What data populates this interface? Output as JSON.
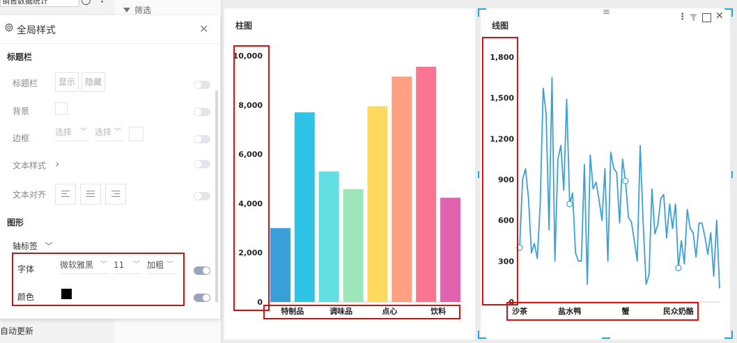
{
  "top": {
    "combo_text": "销售数据统计",
    "more_icon": "⋮",
    "filter_label": "筛选",
    "auto_update": "自动更新"
  },
  "panel": {
    "title": "全局样式",
    "close_icon": "✕",
    "sections": {
      "title_bar": "标题栏",
      "graphics": "图形"
    },
    "title_bar_row": {
      "label": "标题栏",
      "show": "显示",
      "hide": "隐藏"
    },
    "background_row": {
      "label": "背景"
    },
    "border_row": {
      "label": "边框",
      "select1": "选择",
      "select2": "选择"
    },
    "text_style_row": {
      "label": "文本样式",
      "chevron": "›"
    },
    "text_align_row": {
      "label": "文本对齐"
    },
    "axis_label": {
      "label": "轴标签",
      "chevron": "⌄"
    },
    "font_row": {
      "label": "字体",
      "family": "微软雅黑",
      "size": "11",
      "weight": "加粗"
    },
    "color_row": {
      "label": "颜色",
      "value": "#000000"
    },
    "toggles": {
      "title_bar": false,
      "background": false,
      "border": false,
      "text_style": false,
      "text_align": false,
      "font": true,
      "color": true
    }
  },
  "bar_card": {
    "title": "柱图"
  },
  "line_card": {
    "title": "线图",
    "menu_icons": [
      "more-vert-icon",
      "filter-icon",
      "maximize-icon",
      "close-icon"
    ],
    "drag_icon": "≡"
  },
  "chart_data": [
    {
      "type": "bar",
      "title": "柱图",
      "ylim": [
        0,
        10000
      ],
      "yticks": [
        "10,000",
        "8,000",
        "6,000",
        "4,000",
        "2,000",
        "0"
      ],
      "xticks": [
        "特制品",
        "调味品",
        "点心",
        "饮料"
      ],
      "grid": false,
      "values": [
        3000,
        7700,
        5300,
        4580,
        7950,
        9150,
        9550,
        4230
      ],
      "colors": [
        "#3a9fd8",
        "#2ec4e8",
        "#62dfe3",
        "#9de6b9",
        "#fdda5e",
        "#fea082",
        "#fb7592",
        "#e062ae"
      ]
    },
    {
      "type": "line",
      "title": "线图",
      "ylim": [
        0,
        1800
      ],
      "yticks": [
        "1,800",
        "1,500",
        "1,200",
        "900",
        "600",
        "300",
        "0"
      ],
      "xticks": [
        "沙茶",
        "盐水鸭",
        "蟹",
        "民众奶酪"
      ],
      "grid": false,
      "color": "#3a9fd8",
      "values": [
        400,
        900,
        980,
        760,
        360,
        430,
        320,
        720,
        1570,
        1380,
        530,
        1650,
        300,
        1050,
        1150,
        820,
        1490,
        720,
        800,
        360,
        300,
        300,
        1010,
        130,
        1080,
        830,
        880,
        750,
        600,
        980,
        300,
        1100,
        980,
        950,
        580,
        1050,
        890,
        620,
        590,
        450,
        300,
        1150,
        580,
        130,
        200,
        830,
        500,
        570,
        760,
        790,
        470,
        720,
        540,
        720,
        250,
        450,
        280,
        680,
        540,
        510,
        330,
        580,
        580,
        480,
        350,
        510,
        190,
        600,
        100
      ]
    }
  ]
}
